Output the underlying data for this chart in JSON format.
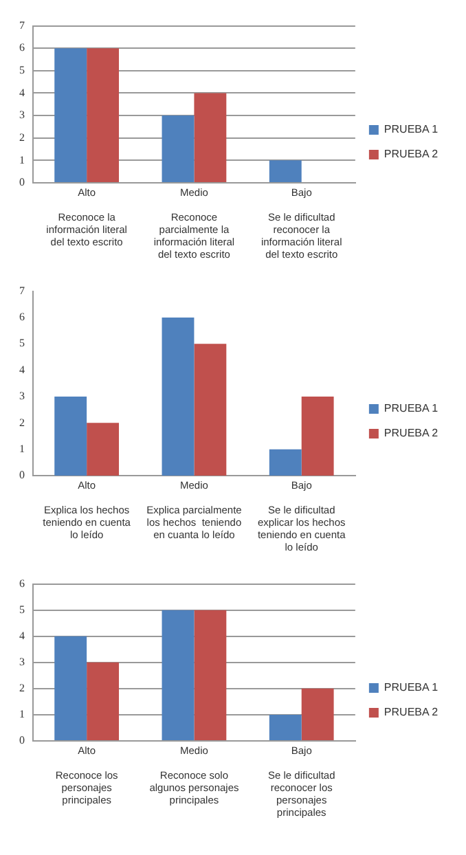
{
  "chart_data": [
    {
      "type": "bar",
      "categories": [
        "Alto\n\nReconoce la\ninformación literal\ndel texto escrito",
        "Medio\n\nReconoce\nparcialmente la\ninformación literal\ndel texto escrito",
        "Bajo\n\nSe le dificultad\nreconocer la\ninformación literal\ndel texto escrito"
      ],
      "series": [
        {
          "name": "PRUEBA 1",
          "color": "#4f81bd",
          "values": [
            6,
            3,
            1
          ]
        },
        {
          "name": "PRUEBA 2",
          "color": "#c0504d",
          "values": [
            6,
            4,
            0
          ]
        }
      ],
      "ylim": [
        0,
        7
      ],
      "yticks": [
        0,
        1,
        2,
        3,
        4,
        5,
        6,
        7
      ],
      "grid": "y",
      "legend": "right"
    },
    {
      "type": "bar",
      "categories": [
        "Alto\n\nExplica los hechos\nteniendo en cuenta\nlo leído",
        "Medio\n\nExplica parcialmente\nlos hechos  teniendo\nen cuanta lo leído",
        "Bajo\n\nSe le dificultad\nexplicar los hechos\nteniendo en cuenta\nlo leído"
      ],
      "series": [
        {
          "name": "PRUEBA 1",
          "color": "#4f81bd",
          "values": [
            3,
            6,
            1
          ]
        },
        {
          "name": "PRUEBA 2",
          "color": "#c0504d",
          "values": [
            2,
            5,
            3
          ]
        }
      ],
      "ylim": [
        0,
        7
      ],
      "yticks": [
        0,
        1,
        2,
        3,
        4,
        5,
        6,
        7
      ],
      "grid": false,
      "legend": "right"
    },
    {
      "type": "bar",
      "categories": [
        "Alto\n\nReconoce los\npersonajes\nprincipales",
        "Medio\n\nReconoce solo\nalgunos personajes\nprincipales",
        "Bajo\n\nSe le dificultad\nreconocer los\npersonajes\nprincipales"
      ],
      "series": [
        {
          "name": "PRUEBA 1",
          "color": "#4f81bd",
          "values": [
            4,
            5,
            1
          ]
        },
        {
          "name": "PRUEBA 2",
          "color": "#c0504d",
          "values": [
            3,
            5,
            2
          ]
        }
      ],
      "ylim": [
        0,
        6
      ],
      "yticks": [
        0,
        1,
        2,
        3,
        4,
        5,
        6
      ],
      "grid": "y",
      "legend": "right"
    }
  ]
}
